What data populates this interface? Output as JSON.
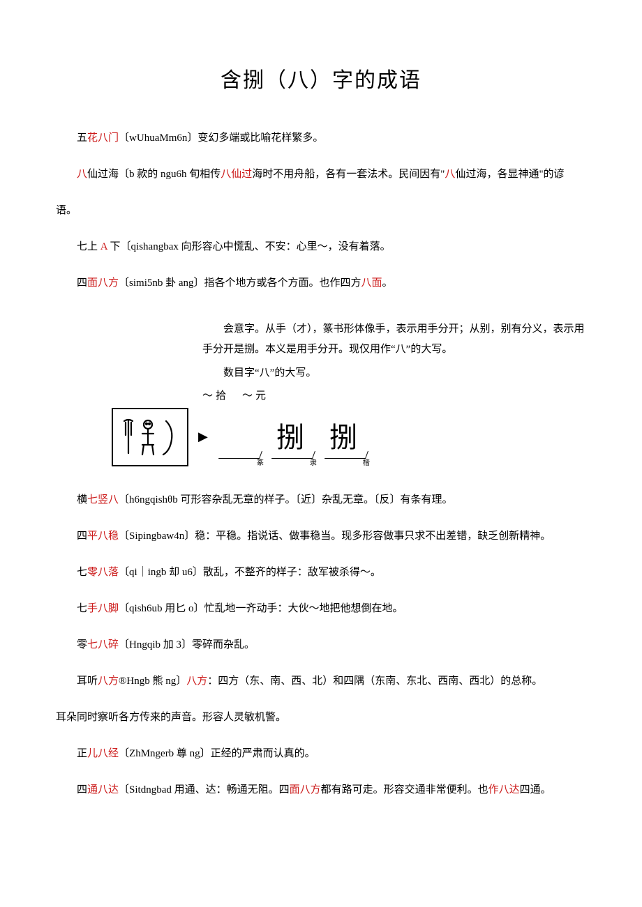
{
  "title": "含捌（八）字的成语",
  "entries_top": [
    {
      "prefix": "五",
      "red1": "花八门",
      "mid": "〔wUhuaMm6n〕变幻多端或比喻花样繁多。",
      "red2": "",
      "tail": ""
    },
    {
      "prefix": "",
      "red1": "八",
      "mid": "仙过海〔b 款的 ngu6h 旬相传",
      "red2": "八仙过",
      "tail": "海时不用舟船，各有一套法术。民间因有\"",
      "red3": "八",
      "tail2": "仙过海，各显神通\"的谚"
    }
  ],
  "yu_continuation": "语。",
  "entries_mid": [
    {
      "text_parts": [
        "七上 ",
        {
          "red": "A"
        },
        " 下〔qishangbax 向形容心中慌乱、不安：心里～，没有着落。"
      ]
    },
    {
      "text_parts": [
        "四",
        {
          "red": "面八方"
        },
        "〔simi5nb 卦 ang〕指各个地方或各个方面。也作四方",
        {
          "red": "八面"
        },
        "。"
      ]
    }
  ],
  "etymology": {
    "line1": "会意字。从手（才），篆书形体像手，表示用手分开；从别，别有分义，表示用手分开是捌。本义是用手分开。现仅用作“八”的大写。",
    "line2": "数目字“八”的大写。",
    "examples": "～拾　～元",
    "glyphs": [
      "𢩿",
      "捌",
      "捌"
    ],
    "subs": [
      "篆",
      "隶",
      "楷"
    ]
  },
  "entries_bottom": [
    {
      "parts": [
        "横",
        {
          "red": "七竖八"
        },
        "〔h6ngqishθb 可形容杂乱无章的样子。〔近〕杂乱无章。〔反〕有条有理。"
      ]
    },
    {
      "parts": [
        "四",
        {
          "red": "平八稳"
        },
        "〔Sipingbaw4n〕稳：平稳。指说话、做事稳当。现多形容做事只求不出差错，缺乏创新精神。"
      ]
    },
    {
      "parts": [
        "七",
        {
          "red": "零八落"
        },
        "〔qi｜ingb 却 u6〕散乱，不整齐的样子：敌军被杀得～。"
      ]
    },
    {
      "parts": [
        "七",
        {
          "red": "手八脚"
        },
        "〔qish6ub 用匕 o〕忙乱地一齐动手：大伙～地把他想倒在地。"
      ]
    },
    {
      "parts": [
        "零",
        {
          "red": "七八碎"
        },
        "〔Hngqib 加 3〕零碎而杂乱。"
      ]
    },
    {
      "parts": [
        "耳听",
        {
          "red": "八方"
        },
        "®Hngb 熊 ng〕",
        {
          "red": "八方"
        },
        "：四方（东、南、西、北）和四隅（东南、东北、西南、西北）的总称。"
      ]
    }
  ],
  "ear_continuation": "耳朵同时察听各方传来的声音。形容人灵敏机警。",
  "entries_last": [
    {
      "parts": [
        "正",
        {
          "red": "儿八经"
        },
        "〔ZhMngerb 尊 ng〕正经的严肃而认真的。"
      ]
    },
    {
      "parts": [
        "四",
        {
          "red": "通八达"
        },
        "〔Sitdngbad 用通、达：畅通无阻。四",
        {
          "red": "面八方"
        },
        "都有路可走。形容交通非常便利。也",
        {
          "red": "作八达"
        },
        "四通。"
      ]
    }
  ]
}
